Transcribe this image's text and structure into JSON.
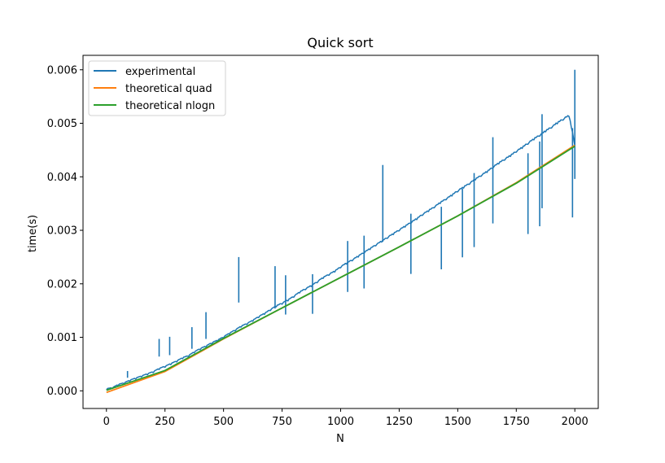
{
  "chart_data": {
    "type": "line",
    "title": "Quick sort",
    "xlabel": "N",
    "ylabel": "time(s)",
    "xlim": [
      -100,
      2100
    ],
    "ylim": [
      -0.00033,
      0.00627
    ],
    "x_ticks": [
      0,
      250,
      500,
      750,
      1000,
      1250,
      1500,
      1750,
      2000
    ],
    "x_tick_labels": [
      "0",
      "250",
      "500",
      "750",
      "1000",
      "1250",
      "1500",
      "1750",
      "2000"
    ],
    "y_ticks": [
      0.0,
      0.001,
      0.002,
      0.003,
      0.004,
      0.005,
      0.006
    ],
    "y_tick_labels": [
      "0.000",
      "0.001",
      "0.002",
      "0.003",
      "0.004",
      "0.005",
      "0.006"
    ],
    "grid": false,
    "legend_position": "top-left",
    "series": [
      {
        "name": "experimental",
        "color": "#1f77b4",
        "x": [
          0,
          25,
          50,
          75,
          100,
          125,
          150,
          175,
          200,
          225,
          250,
          275,
          300,
          325,
          350,
          375,
          400,
          425,
          450,
          475,
          500,
          525,
          550,
          575,
          600,
          625,
          650,
          675,
          700,
          725,
          750,
          775,
          800,
          825,
          850,
          875,
          900,
          925,
          950,
          975,
          1000,
          1025,
          1050,
          1075,
          1100,
          1125,
          1150,
          1175,
          1200,
          1225,
          1250,
          1275,
          1300,
          1325,
          1350,
          1375,
          1400,
          1425,
          1450,
          1475,
          1500,
          1525,
          1550,
          1575,
          1600,
          1625,
          1650,
          1675,
          1700,
          1725,
          1750,
          1775,
          1800,
          1825,
          1850,
          1875,
          1900,
          1925,
          1950,
          1975,
          2000
        ],
        "y": [
          2e-05,
          4e-05,
          0.0001,
          0.00013,
          0.00018,
          0.00022,
          0.00026,
          0.0003,
          0.00034,
          0.0004,
          0.00044,
          0.00049,
          0.00054,
          0.0006,
          0.00064,
          0.00071,
          0.00077,
          0.00082,
          0.00088,
          0.00093,
          0.00099,
          0.00106,
          0.00112,
          0.00119,
          0.00124,
          0.0013,
          0.00137,
          0.00143,
          0.0015,
          0.00157,
          0.00162,
          0.00168,
          0.00175,
          0.00183,
          0.00189,
          0.00195,
          0.00202,
          0.0021,
          0.00216,
          0.00222,
          0.0023,
          0.00237,
          0.00243,
          0.0025,
          0.00257,
          0.00264,
          0.00271,
          0.00278,
          0.00285,
          0.00292,
          0.00299,
          0.00306,
          0.00313,
          0.0032,
          0.00328,
          0.00335,
          0.00342,
          0.0035,
          0.00357,
          0.00364,
          0.00372,
          0.00379,
          0.00386,
          0.00394,
          0.00401,
          0.00408,
          0.00416,
          0.00424,
          0.00431,
          0.00438,
          0.00446,
          0.00453,
          0.00461,
          0.00469,
          0.00476,
          0.00484,
          0.00491,
          0.00499,
          0.00506,
          0.00513,
          0.00458
        ]
      },
      {
        "name": "theoretical quad",
        "color": "#ff7f0e",
        "x": [
          0,
          250,
          500,
          750,
          1000,
          1250,
          1500,
          1750,
          2000
        ],
        "y": [
          -3e-05,
          0.00036,
          0.00097,
          0.00155,
          0.00212,
          0.00269,
          0.00327,
          0.00389,
          0.00459
        ]
      },
      {
        "name": "theoretical nlogn",
        "color": "#2ca02c",
        "x": [
          0,
          250,
          500,
          750,
          1000,
          1250,
          1500,
          1750,
          2000
        ],
        "y": [
          1e-05,
          0.00038,
          0.00098,
          0.00155,
          0.00212,
          0.00269,
          0.00327,
          0.00388,
          0.00457
        ]
      }
    ],
    "spikes": [
      {
        "x": 90,
        "y": 0.00037
      },
      {
        "x": 225,
        "y": 0.00097
      },
      {
        "x": 270,
        "y": 0.00101
      },
      {
        "x": 365,
        "y": 0.00119
      },
      {
        "x": 425,
        "y": 0.00147
      },
      {
        "x": 565,
        "y": 0.0025
      },
      {
        "x": 720,
        "y": 0.00233
      },
      {
        "x": 765,
        "y": 0.00216
      },
      {
        "x": 880,
        "y": 0.00218
      },
      {
        "x": 1030,
        "y": 0.0028
      },
      {
        "x": 1100,
        "y": 0.0029
      },
      {
        "x": 1180,
        "y": 0.00422
      },
      {
        "x": 1300,
        "y": 0.00331
      },
      {
        "x": 1430,
        "y": 0.00344
      },
      {
        "x": 1520,
        "y": 0.00378
      },
      {
        "x": 1570,
        "y": 0.00407
      },
      {
        "x": 1650,
        "y": 0.00474
      },
      {
        "x": 1800,
        "y": 0.00444
      },
      {
        "x": 1850,
        "y": 0.00466
      },
      {
        "x": 1860,
        "y": 0.00517
      },
      {
        "x": 1990,
        "y": 0.00491
      },
      {
        "x": 2000,
        "y": 0.006
      }
    ]
  }
}
